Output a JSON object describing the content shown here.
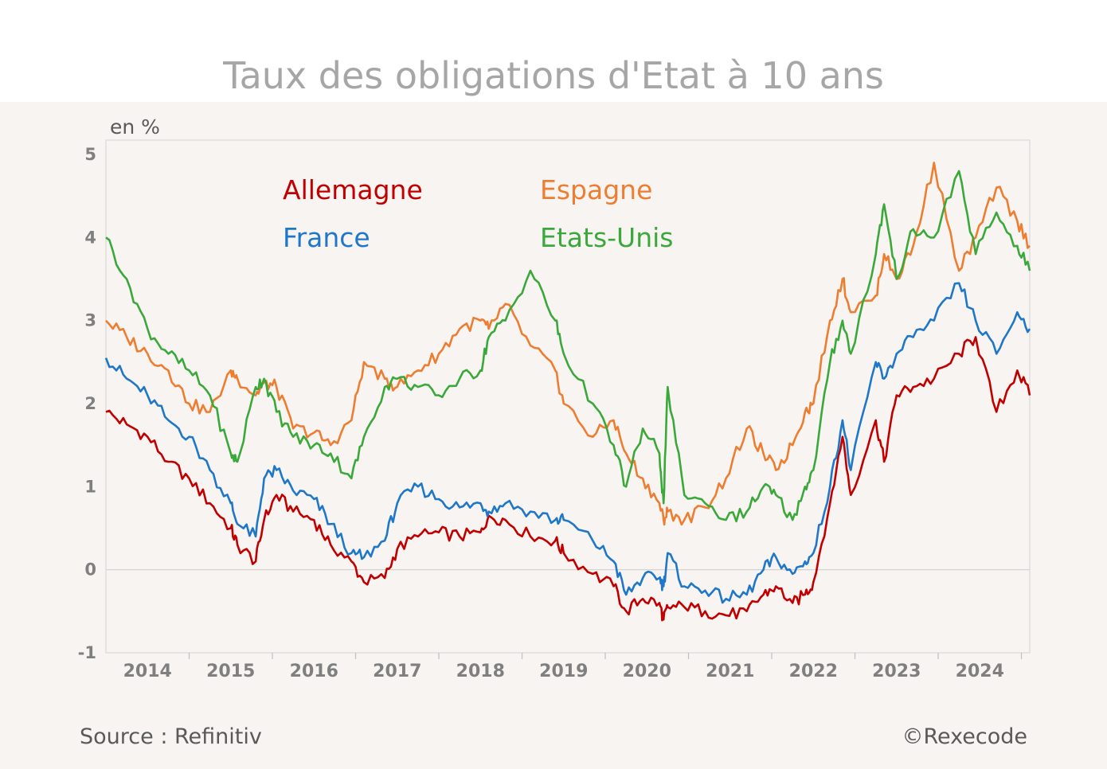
{
  "title": "Taux des obligations d'Etat à 10 ans",
  "source": "Source : Refinitiv",
  "copyright": "©Rexecode",
  "colors": {
    "background": "#f8f4f1",
    "Allemagne": "#c00000",
    "France": "#1f77c8",
    "Espagne": "#ed7d31",
    "Etats-Unis": "#3aa83a"
  },
  "chart_data": {
    "type": "line",
    "title": "Taux des obligations d'Etat à 10 ans",
    "ylabel": "en %",
    "ylim": [
      -1,
      5
    ],
    "yticks": [
      "-1",
      "0",
      "1",
      "2",
      "3",
      "4",
      "5"
    ],
    "xlim": [
      2013.5,
      2024.6
    ],
    "xticks": [
      "2014",
      "2015",
      "2016",
      "2017",
      "2018",
      "2019",
      "2020",
      "2021",
      "2022",
      "2023",
      "2024"
    ],
    "grid": false,
    "legend": "in-plot top-left",
    "series": [
      {
        "name": "Allemagne",
        "x": [
          2013.5,
          2013.75,
          2014.0,
          2014.25,
          2014.5,
          2014.75,
          2015.0,
          2015.08,
          2015.3,
          2015.4,
          2015.55,
          2015.75,
          2016.0,
          2016.2,
          2016.45,
          2016.6,
          2016.85,
          2017.0,
          2017.25,
          2017.5,
          2017.75,
          2018.0,
          2018.1,
          2018.3,
          2018.6,
          2018.9,
          2019.0,
          2019.35,
          2019.6,
          2019.75,
          2019.95,
          2020.15,
          2020.2,
          2020.25,
          2020.45,
          2020.7,
          2020.95,
          2021.2,
          2021.4,
          2021.55,
          2021.75,
          2021.9,
          2022.0,
          2022.2,
          2022.35,
          2022.45,
          2022.75,
          2022.85,
          2023.0,
          2023.2,
          2023.45,
          2023.75,
          2023.95,
          2024.2,
          2024.45,
          2024.6
        ],
        "y": [
          1.9,
          1.75,
          1.6,
          1.3,
          1.1,
          0.8,
          0.5,
          0.3,
          0.1,
          0.6,
          0.9,
          0.7,
          0.6,
          0.3,
          0.1,
          -0.15,
          -0.1,
          0.25,
          0.4,
          0.45,
          0.4,
          0.45,
          0.65,
          0.6,
          0.4,
          0.35,
          0.2,
          -0.05,
          -0.2,
          -0.5,
          -0.35,
          -0.4,
          -0.6,
          -0.45,
          -0.45,
          -0.5,
          -0.55,
          -0.5,
          -0.3,
          -0.2,
          -0.4,
          -0.3,
          -0.15,
          0.8,
          1.6,
          0.9,
          1.8,
          1.3,
          2.1,
          2.2,
          2.3,
          2.6,
          2.8,
          1.9,
          2.4,
          2.1
        ]
      },
      {
        "name": "France",
        "x": [
          2013.5,
          2013.75,
          2014.0,
          2014.25,
          2014.5,
          2014.75,
          2015.0,
          2015.08,
          2015.3,
          2015.4,
          2015.55,
          2015.75,
          2016.0,
          2016.2,
          2016.45,
          2016.6,
          2016.85,
          2017.0,
          2017.25,
          2017.5,
          2017.75,
          2018.0,
          2018.1,
          2018.3,
          2018.6,
          2018.9,
          2019.0,
          2019.35,
          2019.6,
          2019.75,
          2019.95,
          2020.15,
          2020.2,
          2020.25,
          2020.45,
          2020.7,
          2020.95,
          2021.2,
          2021.4,
          2021.55,
          2021.75,
          2021.9,
          2022.0,
          2022.2,
          2022.35,
          2022.45,
          2022.75,
          2022.85,
          2023.0,
          2023.2,
          2023.45,
          2023.75,
          2023.95,
          2024.2,
          2024.45,
          2024.6
        ],
        "y": [
          2.55,
          2.3,
          2.1,
          1.8,
          1.6,
          1.2,
          0.8,
          0.55,
          0.4,
          1.1,
          1.2,
          0.95,
          0.85,
          0.55,
          0.2,
          0.15,
          0.35,
          0.8,
          1.0,
          0.85,
          0.75,
          0.8,
          0.7,
          0.8,
          0.7,
          0.6,
          0.6,
          0.35,
          0.1,
          -0.3,
          -0.1,
          -0.1,
          -0.2,
          0.2,
          -0.2,
          -0.25,
          -0.35,
          -0.3,
          0.0,
          0.15,
          -0.05,
          0.1,
          0.2,
          1.0,
          1.8,
          1.2,
          2.5,
          2.3,
          2.6,
          2.8,
          3.0,
          3.45,
          3.0,
          2.6,
          3.1,
          2.9
        ]
      },
      {
        "name": "Espagne",
        "x": [
          2013.5,
          2013.75,
          2014.0,
          2014.25,
          2014.5,
          2014.75,
          2015.0,
          2015.08,
          2015.3,
          2015.4,
          2015.55,
          2015.75,
          2016.0,
          2016.2,
          2016.45,
          2016.6,
          2016.85,
          2017.0,
          2017.25,
          2017.5,
          2017.75,
          2018.0,
          2018.1,
          2018.3,
          2018.6,
          2018.9,
          2019.0,
          2019.35,
          2019.6,
          2019.75,
          2019.95,
          2020.15,
          2020.2,
          2020.25,
          2020.45,
          2020.7,
          2020.95,
          2021.2,
          2021.4,
          2021.55,
          2021.75,
          2021.9,
          2022.0,
          2022.2,
          2022.35,
          2022.45,
          2022.75,
          2022.85,
          2023.0,
          2023.2,
          2023.45,
          2023.75,
          2023.95,
          2024.2,
          2024.45,
          2024.6
        ],
        "y": [
          3.0,
          2.8,
          2.6,
          2.4,
          2.0,
          1.9,
          2.4,
          2.3,
          2.1,
          2.25,
          2.2,
          1.7,
          1.65,
          1.5,
          1.8,
          2.5,
          2.3,
          2.2,
          2.4,
          2.6,
          2.9,
          3.0,
          2.9,
          3.2,
          2.7,
          2.4,
          2.0,
          1.6,
          1.8,
          1.4,
          1.1,
          0.8,
          0.6,
          0.7,
          0.6,
          0.75,
          1.1,
          1.7,
          1.4,
          1.2,
          1.5,
          1.9,
          2.0,
          3.0,
          3.5,
          3.1,
          3.3,
          3.8,
          3.5,
          3.9,
          4.9,
          3.6,
          4.0,
          4.6,
          4.2,
          3.9
        ]
      },
      {
        "name": "Etats-Unis",
        "x": [
          2013.5,
          2013.75,
          2014.0,
          2014.25,
          2014.5,
          2014.75,
          2015.0,
          2015.08,
          2015.3,
          2015.4,
          2015.55,
          2015.75,
          2016.0,
          2016.2,
          2016.45,
          2016.6,
          2016.85,
          2017.0,
          2017.25,
          2017.5,
          2017.75,
          2018.0,
          2018.1,
          2018.3,
          2018.6,
          2018.9,
          2019.0,
          2019.35,
          2019.6,
          2019.75,
          2019.95,
          2020.15,
          2020.2,
          2020.25,
          2020.45,
          2020.7,
          2020.95,
          2021.2,
          2021.4,
          2021.55,
          2021.75,
          2021.9,
          2022.0,
          2022.2,
          2022.35,
          2022.45,
          2022.75,
          2022.85,
          2023.0,
          2023.2,
          2023.45,
          2023.75,
          2023.95,
          2024.2,
          2024.45,
          2024.6
        ],
        "y": [
          4.0,
          3.5,
          2.9,
          2.6,
          2.4,
          2.1,
          1.4,
          1.3,
          2.2,
          2.3,
          1.9,
          1.6,
          1.5,
          1.4,
          1.1,
          1.6,
          2.2,
          2.3,
          2.2,
          2.1,
          2.3,
          2.4,
          2.8,
          3.0,
          3.6,
          3.0,
          2.6,
          2.0,
          1.5,
          1.0,
          1.7,
          1.4,
          0.8,
          2.2,
          0.9,
          0.8,
          0.6,
          0.7,
          1.0,
          0.9,
          0.6,
          1.0,
          1.2,
          2.5,
          3.0,
          2.6,
          3.8,
          4.4,
          3.5,
          4.1,
          4.0,
          4.8,
          3.8,
          4.3,
          3.9,
          3.6
        ]
      }
    ]
  }
}
